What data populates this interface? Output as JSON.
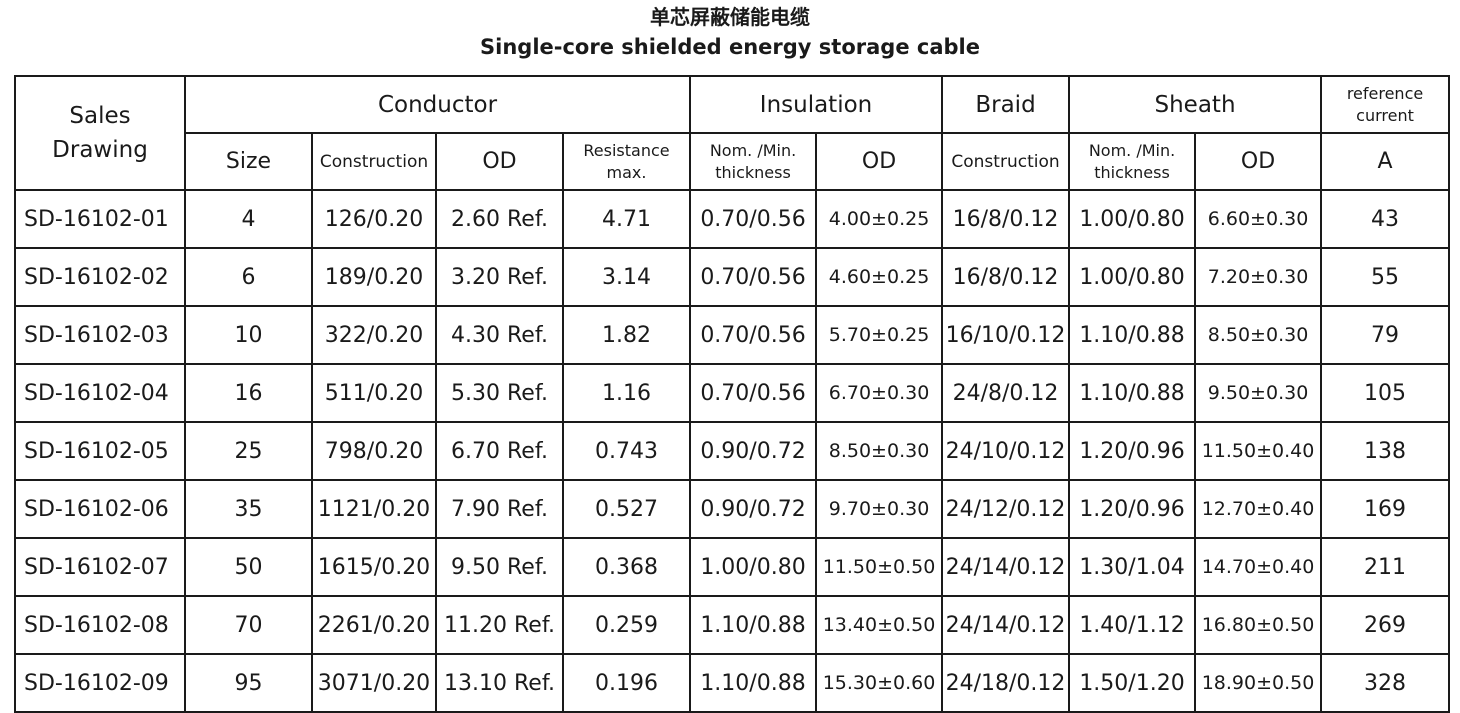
{
  "title": {
    "cn": "单芯屏蔽储能电缆",
    "en": "Single-core shielded energy storage cable"
  },
  "headers": {
    "sales_drawing_line1": "Sales",
    "sales_drawing_line2": "Drawing",
    "conductor": "Conductor",
    "insulation": "Insulation",
    "braid": "Braid",
    "sheath": "Sheath",
    "reference_current_line1": "reference",
    "reference_current_line2": "current",
    "size": "Size",
    "conductor_construction": "Construction",
    "conductor_od": "OD",
    "resistance_line1": "Resistance",
    "resistance_line2": "max.",
    "ins_thickness_line1": "Nom. /Min.",
    "ins_thickness_line2": "thickness",
    "ins_od": "OD",
    "braid_construction": "Construction",
    "sheath_thickness_line1": "Nom. /Min.",
    "sheath_thickness_line2": "thickness",
    "sheath_od": "OD",
    "current_unit": "A"
  },
  "rows": [
    {
      "drawing": "SD-16102-01",
      "size": "4",
      "construction": "126/0.20",
      "od": "2.60 Ref.",
      "resistance": "4.71",
      "ins_thickness": "0.70/0.56",
      "ins_od": "4.00±0.25",
      "braid": "16/8/0.12",
      "sheath_thickness": "1.00/0.80",
      "sheath_od": "6.60±0.30",
      "current": "43"
    },
    {
      "drawing": "SD-16102-02",
      "size": "6",
      "construction": "189/0.20",
      "od": "3.20 Ref.",
      "resistance": "3.14",
      "ins_thickness": "0.70/0.56",
      "ins_od": "4.60±0.25",
      "braid": "16/8/0.12",
      "sheath_thickness": "1.00/0.80",
      "sheath_od": "7.20±0.30",
      "current": "55"
    },
    {
      "drawing": "SD-16102-03",
      "size": "10",
      "construction": "322/0.20",
      "od": "4.30 Ref.",
      "resistance": "1.82",
      "ins_thickness": "0.70/0.56",
      "ins_od": "5.70±0.25",
      "braid": "16/10/0.12",
      "sheath_thickness": "1.10/0.88",
      "sheath_od": "8.50±0.30",
      "current": "79"
    },
    {
      "drawing": "SD-16102-04",
      "size": "16",
      "construction": "511/0.20",
      "od": "5.30 Ref.",
      "resistance": "1.16",
      "ins_thickness": "0.70/0.56",
      "ins_od": "6.70±0.30",
      "braid": "24/8/0.12",
      "sheath_thickness": "1.10/0.88",
      "sheath_od": "9.50±0.30",
      "current": "105"
    },
    {
      "drawing": "SD-16102-05",
      "size": "25",
      "construction": "798/0.20",
      "od": "6.70 Ref.",
      "resistance": "0.743",
      "ins_thickness": "0.90/0.72",
      "ins_od": "8.50±0.30",
      "braid": "24/10/0.12",
      "sheath_thickness": "1.20/0.96",
      "sheath_od": "11.50±0.40",
      "current": "138"
    },
    {
      "drawing": "SD-16102-06",
      "size": "35",
      "construction": "1121/0.20",
      "od": "7.90 Ref.",
      "resistance": "0.527",
      "ins_thickness": "0.90/0.72",
      "ins_od": "9.70±0.30",
      "braid": "24/12/0.12",
      "sheath_thickness": "1.20/0.96",
      "sheath_od": "12.70±0.40",
      "current": "169"
    },
    {
      "drawing": "SD-16102-07",
      "size": "50",
      "construction": "1615/0.20",
      "od": "9.50 Ref.",
      "resistance": "0.368",
      "ins_thickness": "1.00/0.80",
      "ins_od": "11.50±0.50",
      "braid": "24/14/0.12",
      "sheath_thickness": "1.30/1.04",
      "sheath_od": "14.70±0.40",
      "current": "211"
    },
    {
      "drawing": "SD-16102-08",
      "size": "70",
      "construction": "2261/0.20",
      "od": "11.20 Ref.",
      "resistance": "0.259",
      "ins_thickness": "1.10/0.88",
      "ins_od": "13.40±0.50",
      "braid": "24/14/0.12",
      "sheath_thickness": "1.40/1.12",
      "sheath_od": "16.80±0.50",
      "current": "269"
    },
    {
      "drawing": "SD-16102-09",
      "size": "95",
      "construction": "3071/0.20",
      "od": "13.10 Ref.",
      "resistance": "0.196",
      "ins_thickness": "1.10/0.88",
      "ins_od": "15.30±0.60",
      "braid": "24/18/0.12",
      "sheath_thickness": "1.50/1.20",
      "sheath_od": "18.90±0.50",
      "current": "328"
    }
  ]
}
